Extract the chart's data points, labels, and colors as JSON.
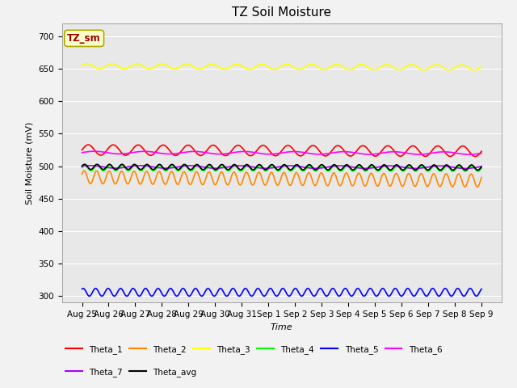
{
  "title": "TZ Soil Moisture",
  "ylabel": "Soil Moisture (mV)",
  "xlabel": "Time",
  "annotation": "TZ_sm",
  "ylim": [
    290,
    720
  ],
  "yticks": [
    300,
    350,
    400,
    450,
    500,
    550,
    600,
    650,
    700
  ],
  "x_labels": [
    "Aug 25",
    "Aug 26",
    "Aug 27",
    "Aug 28",
    "Aug 29",
    "Aug 30",
    "Aug 31",
    "Sep 1",
    "Sep 2",
    "Sep 3",
    "Sep 4",
    "Sep 5",
    "Sep 6",
    "Sep 7",
    "Sep 8",
    "Sep 9"
  ],
  "n_points": 480,
  "series": [
    {
      "name": "Theta_1",
      "color": "#ff0000",
      "base": 525,
      "amp": 8,
      "freq_day": 1.0,
      "phase": 0.0,
      "trend": -2.0
    },
    {
      "name": "Theta_2",
      "color": "#ff8800",
      "base": 483,
      "amp": 10,
      "freq_day": 2.0,
      "phase": 0.5,
      "trend": -5.0
    },
    {
      "name": "Theta_3",
      "color": "#ffff00",
      "base": 654,
      "amp": 4,
      "freq_day": 1.0,
      "phase": 0.3,
      "trend": -2.0
    },
    {
      "name": "Theta_4",
      "color": "#00ff00",
      "base": 497,
      "amp": 4,
      "freq_day": 2.0,
      "phase": 0.2,
      "trend": -1.0
    },
    {
      "name": "Theta_5",
      "color": "#0000ff",
      "base": 306,
      "amp": 6,
      "freq_day": 2.0,
      "phase": 1.0,
      "trend": 0.0
    },
    {
      "name": "Theta_6",
      "color": "#ff00ff",
      "base": 521,
      "amp": 2,
      "freq_day": 0.5,
      "phase": 0.0,
      "trend": -1.0
    },
    {
      "name": "Theta_7",
      "color": "#aa00ff",
      "base": 499,
      "amp": 2,
      "freq_day": 0.5,
      "phase": 0.5,
      "trend": -0.5
    },
    {
      "name": "Theta_avg",
      "color": "#000000",
      "base": 499,
      "amp": 4,
      "freq_day": 2.0,
      "phase": 0.3,
      "trend": -1.0
    }
  ],
  "bg_color": "#e8e8e8",
  "fig_bg_color": "#f2f2f2",
  "grid_color": "#ffffff",
  "title_fontsize": 11,
  "label_fontsize": 8,
  "tick_fontsize": 7.5
}
